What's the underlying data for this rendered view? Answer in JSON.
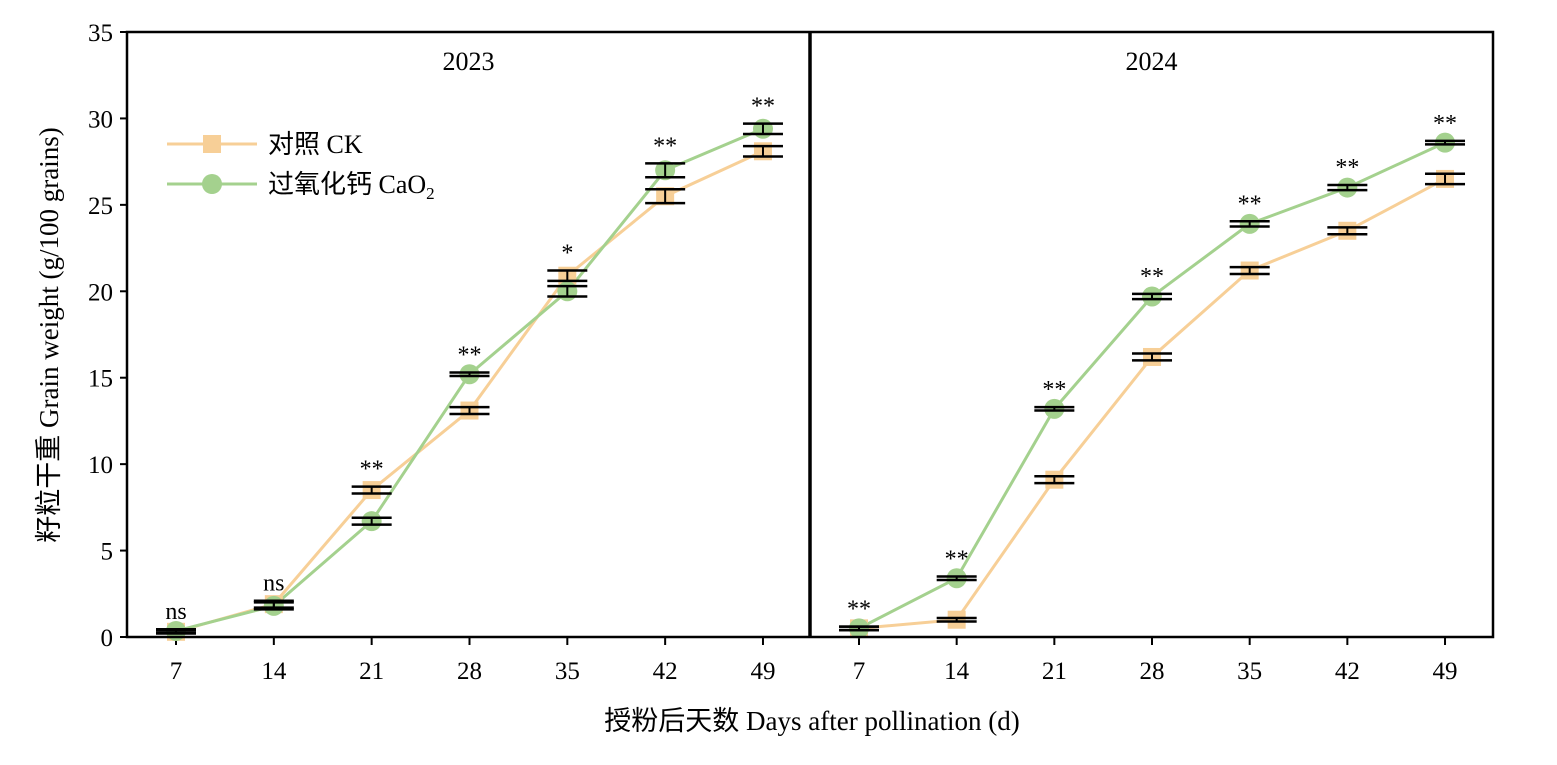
{
  "chart_data": {
    "type": "line",
    "ylabel": "籽粒干重 Grain weight (g/100 grains)",
    "xlabel": "授粉后天数 Days after pollination (d)",
    "ylim": [
      0,
      35
    ],
    "yticks": [
      0,
      5,
      10,
      15,
      20,
      25,
      30,
      35
    ],
    "x": [
      7,
      14,
      21,
      28,
      35,
      42,
      49
    ],
    "legend": {
      "position": "top-left of first panel",
      "items": [
        {
          "label_main": "对照 CK",
          "label_sub": "",
          "series": "ck"
        },
        {
          "label_main": "过氧化钙 CaO",
          "label_sub": "2",
          "series": "cao2"
        }
      ]
    },
    "colors": {
      "ck": "#f7cf97",
      "cao2": "#a4d18e",
      "error": "#000000"
    },
    "panels": [
      {
        "title": "2023",
        "series": [
          {
            "key": "ck",
            "name": "对照 CK",
            "marker": "square",
            "values": [
              0.3,
              1.9,
              8.5,
              13.1,
              20.9,
              25.5,
              28.1
            ],
            "err": [
              0.1,
              0.2,
              0.2,
              0.2,
              0.3,
              0.4,
              0.3
            ]
          },
          {
            "key": "cao2",
            "name": "过氧化钙 CaO2",
            "marker": "circle",
            "values": [
              0.35,
              1.8,
              6.7,
              15.2,
              20.0,
              27.0,
              29.4
            ],
            "err": [
              0.1,
              0.2,
              0.2,
              0.1,
              0.3,
              0.4,
              0.3
            ]
          }
        ],
        "significance": [
          "ns",
          "ns",
          "**",
          "**",
          "*",
          "**",
          "**"
        ]
      },
      {
        "title": "2024",
        "series": [
          {
            "key": "ck",
            "name": "对照 CK",
            "marker": "square",
            "values": [
              0.5,
              1.0,
              9.1,
              16.2,
              21.2,
              23.5,
              26.5
            ],
            "err": [
              0.1,
              0.1,
              0.2,
              0.2,
              0.2,
              0.2,
              0.3
            ]
          },
          {
            "key": "cao2",
            "name": "过氧化钙 CaO2",
            "marker": "circle",
            "values": [
              0.5,
              3.4,
              13.2,
              19.7,
              23.9,
              26.0,
              28.6
            ],
            "err": [
              0.1,
              0.1,
              0.1,
              0.15,
              0.15,
              0.15,
              0.1
            ]
          }
        ],
        "significance": [
          "**",
          "**",
          "**",
          "**",
          "**",
          "**",
          "**"
        ]
      }
    ]
  }
}
